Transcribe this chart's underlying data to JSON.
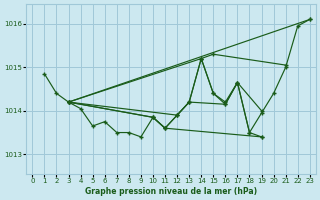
{
  "xlabel": "Graphe pression niveau de la mer (hPa)",
  "bg_color": "#cce8f0",
  "grid_color": "#a0c8d8",
  "line_color": "#1a5c1a",
  "ylim": [
    1012.55,
    1016.45
  ],
  "xlim": [
    -0.5,
    23.5
  ],
  "yticks": [
    1013,
    1014,
    1015,
    1016
  ],
  "xticks": [
    0,
    1,
    2,
    3,
    4,
    5,
    6,
    7,
    8,
    9,
    10,
    11,
    12,
    13,
    14,
    15,
    16,
    17,
    18,
    19,
    20,
    21,
    22,
    23
  ],
  "series": [
    {
      "x": [
        1,
        2,
        3,
        4,
        5,
        6,
        7,
        8,
        9,
        10,
        11,
        12,
        13,
        14,
        15,
        16,
        17,
        18,
        19,
        20,
        21,
        22,
        23
      ],
      "y": [
        1014.85,
        1014.4,
        1014.2,
        1014.05,
        1013.65,
        1013.75,
        1013.5,
        1013.5,
        1013.4,
        1013.85,
        1013.6,
        1013.9,
        1014.2,
        1015.2,
        1014.4,
        1014.15,
        1014.65,
        1013.5,
        1013.95,
        1014.4,
        1015.0,
        1015.95,
        1016.1
      ]
    },
    {
      "x": [
        3,
        23
      ],
      "y": [
        1014.2,
        1016.1
      ]
    },
    {
      "x": [
        3,
        14,
        15,
        21
      ],
      "y": [
        1014.2,
        1015.2,
        1015.3,
        1015.05
      ]
    },
    {
      "x": [
        3,
        12,
        13,
        14,
        15,
        16,
        17,
        19
      ],
      "y": [
        1014.2,
        1013.9,
        1014.2,
        1015.2,
        1014.4,
        1014.2,
        1014.65,
        1014.0
      ]
    },
    {
      "x": [
        3,
        10,
        11,
        12,
        13,
        16,
        17,
        18,
        19
      ],
      "y": [
        1014.2,
        1013.85,
        1013.6,
        1013.9,
        1014.2,
        1014.15,
        1014.65,
        1013.5,
        1013.4
      ]
    },
    {
      "x": [
        3,
        10,
        11,
        19
      ],
      "y": [
        1014.2,
        1013.85,
        1013.6,
        1013.4
      ]
    }
  ]
}
